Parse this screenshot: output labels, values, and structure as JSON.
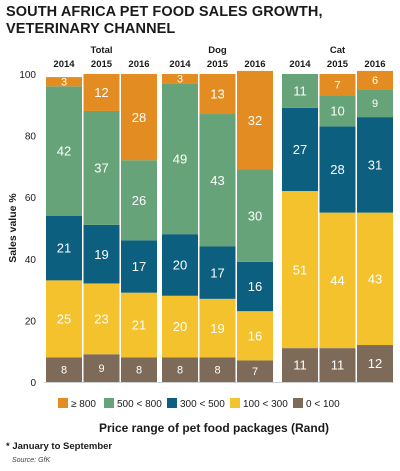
{
  "chart_data": {
    "type": "bar",
    "stacked": true,
    "title": "SOUTH AFRICA PET FOOD SALES GROWTH, VETERINARY CHANNEL",
    "ylabel": "Sales value %",
    "xlabel": "Price range of pet food packages (Rand)",
    "ylim": [
      0,
      100
    ],
    "yticks": [
      0,
      20,
      40,
      60,
      80,
      100
    ],
    "groups": [
      {
        "name": "Total",
        "years": [
          "2014",
          "2015",
          "2016"
        ]
      },
      {
        "name": "Dog",
        "years": [
          "2014",
          "2015",
          "2016"
        ]
      },
      {
        "name": "Cat",
        "years": [
          "2014",
          "2015",
          "2016"
        ]
      }
    ],
    "series": [
      {
        "name": "0 < 100",
        "color": "#7e6a58",
        "label_color": "#ffffff",
        "values": [
          8,
          9,
          8,
          8,
          8,
          7,
          11,
          11,
          12
        ]
      },
      {
        "name": "100 < 300",
        "color": "#f3c22c",
        "label_color": "#ffffff",
        "values": [
          25,
          23,
          21,
          20,
          19,
          16,
          51,
          44,
          43
        ]
      },
      {
        "name": "300 < 500",
        "color": "#0c5f7e",
        "label_color": "#ffffff",
        "values": [
          21,
          19,
          17,
          20,
          17,
          16,
          27,
          28,
          31
        ]
      },
      {
        "name": "500 < 800",
        "color": "#66a378",
        "label_color": "#ffffff",
        "values": [
          42,
          37,
          26,
          49,
          43,
          30,
          11,
          10,
          9
        ]
      },
      {
        "name": "≥ 800",
        "color": "#e38c21",
        "label_color": "#ffffff",
        "values": [
          3,
          12,
          28,
          3,
          13,
          32,
          0,
          7,
          6
        ]
      }
    ],
    "legend_order": [
      "≥ 800",
      "500 < 800",
      "300 < 500",
      "100 < 300",
      "0 < 100"
    ],
    "legend_position": "bottom",
    "grid": false
  },
  "footnote": "* January to September",
  "source": "Source: GfK"
}
